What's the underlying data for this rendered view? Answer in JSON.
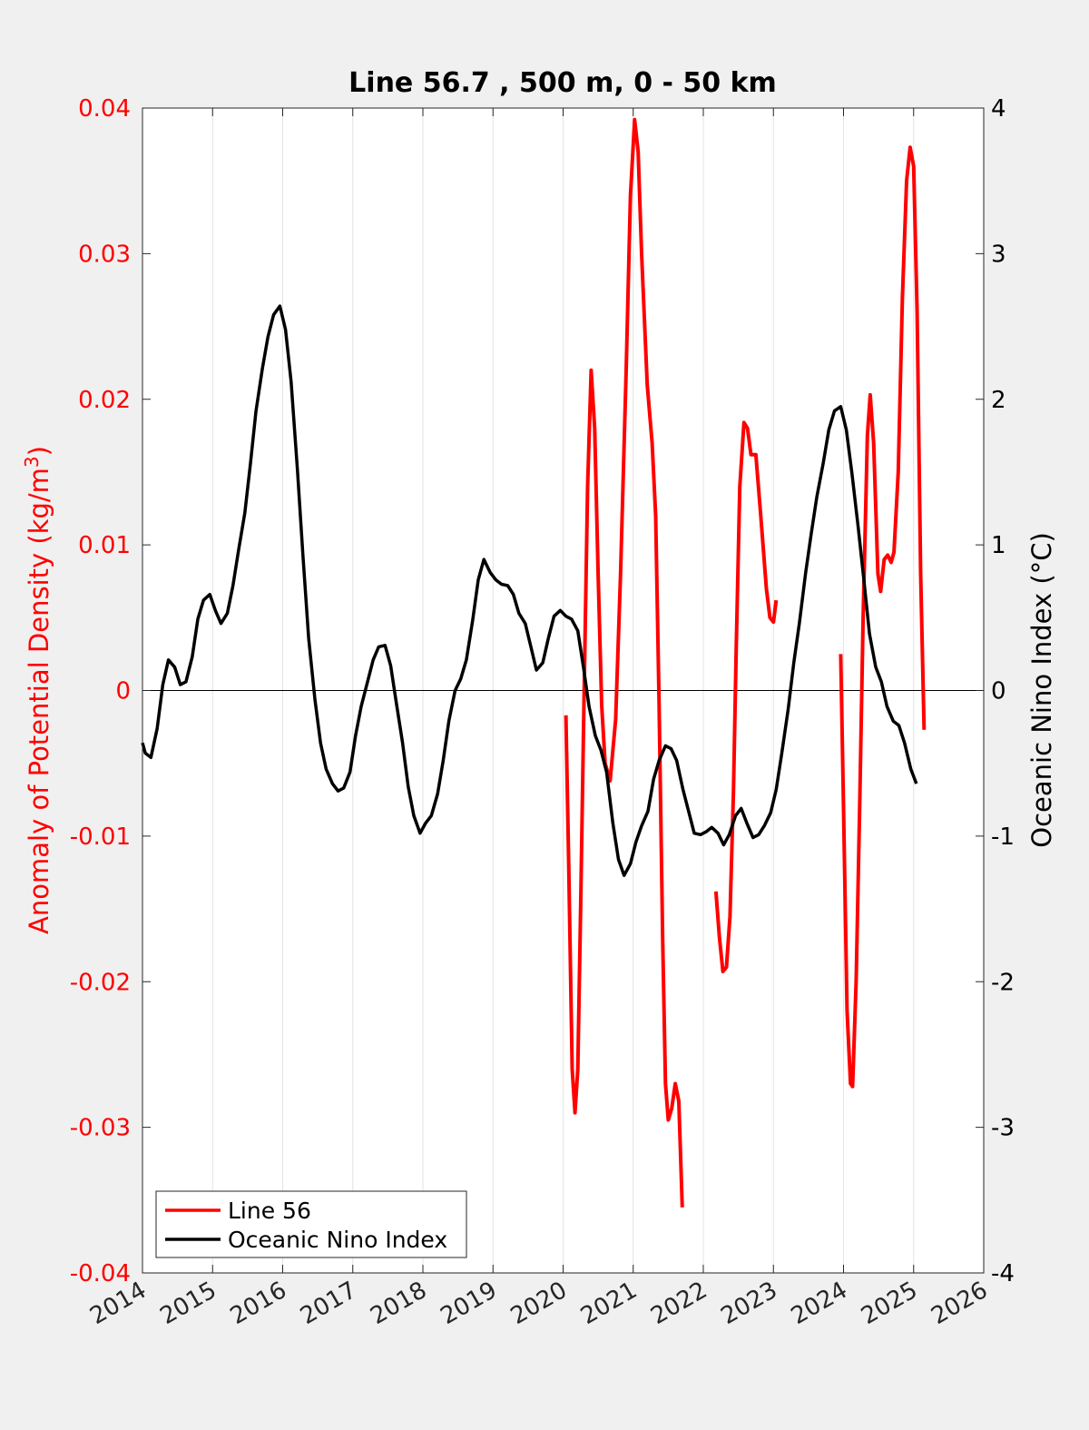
{
  "chart_data": {
    "type": "line",
    "title": "Line 56.7 , 500 m, 0 - 50 km",
    "ylabel_left": "Anomaly of Potential Density (kg/m3)",
    "ylabel_left_main": "Anomaly of Potential Density (kg/m",
    "ylabel_left_sup": "3",
    "ylabel_left_close": ")",
    "ylabel_right": "Oceanic Nino Index (°C)",
    "xlim": [
      2014,
      2026
    ],
    "ylim_left": [
      -0.04,
      0.04
    ],
    "ylim_right": [
      -4,
      4
    ],
    "x_ticks": [
      "2014",
      "2015",
      "2016",
      "2017",
      "2018",
      "2019",
      "2020",
      "2021",
      "2022",
      "2023",
      "2024",
      "2025",
      "2026"
    ],
    "y_left_ticks": [
      "0.04",
      "0.03",
      "0.02",
      "0.01",
      "0",
      "-0.01",
      "-0.02",
      "-0.03",
      "-0.04"
    ],
    "y_right_ticks": [
      "4",
      "3",
      "2",
      "1",
      "0",
      "-1",
      "-2",
      "-3",
      "-4"
    ],
    "grid": "vertical",
    "zero_line": true,
    "legend_position": "bottom-left",
    "colors": {
      "line56": "#ff0000",
      "oni": "#000000",
      "left_axis": "#ff0000",
      "right_axis": "#000000"
    },
    "series": [
      {
        "name": "Line 56",
        "axis": "left",
        "segments": [
          [
            [
              2020.04,
              -0.0017
            ],
            [
              2020.08,
              -0.012
            ],
            [
              2020.13,
              -0.026
            ],
            [
              2020.17,
              -0.029
            ],
            [
              2020.21,
              -0.026
            ],
            [
              2020.25,
              -0.015
            ],
            [
              2020.3,
              0.0
            ],
            [
              2020.35,
              0.014
            ],
            [
              2020.4,
              0.022
            ],
            [
              2020.45,
              0.018
            ],
            [
              2020.5,
              0.008
            ],
            [
              2020.55,
              -0.001
            ],
            [
              2020.6,
              -0.005
            ],
            [
              2020.67,
              -0.0062
            ],
            [
              2020.75,
              -0.002
            ],
            [
              2020.82,
              0.008
            ],
            [
              2020.9,
              0.022
            ],
            [
              2020.96,
              0.034
            ],
            [
              2021.02,
              0.0392
            ],
            [
              2021.07,
              0.037
            ],
            [
              2021.12,
              0.03
            ],
            [
              2021.2,
              0.021
            ],
            [
              2021.27,
              0.017
            ],
            [
              2021.32,
              0.012
            ],
            [
              2021.37,
              -0.001
            ],
            [
              2021.42,
              -0.017
            ],
            [
              2021.46,
              -0.027
            ],
            [
              2021.5,
              -0.0295
            ],
            [
              2021.55,
              -0.0287
            ],
            [
              2021.6,
              -0.027
            ],
            [
              2021.65,
              -0.0282
            ],
            [
              2021.7,
              -0.0355
            ]
          ],
          [
            [
              2022.18,
              -0.0138
            ],
            [
              2022.23,
              -0.017
            ],
            [
              2022.28,
              -0.0193
            ],
            [
              2022.33,
              -0.019
            ],
            [
              2022.38,
              -0.0155
            ],
            [
              2022.43,
              -0.007
            ],
            [
              2022.47,
              0.003
            ],
            [
              2022.52,
              0.014
            ],
            [
              2022.58,
              0.0184
            ],
            [
              2022.63,
              0.018
            ],
            [
              2022.68,
              0.0162
            ],
            [
              2022.75,
              0.0162
            ],
            [
              2022.82,
              0.012
            ],
            [
              2022.9,
              0.007
            ],
            [
              2022.95,
              0.005
            ],
            [
              2023.0,
              0.0047
            ],
            [
              2023.04,
              0.0062
            ]
          ],
          [
            [
              2023.96,
              0.0025
            ],
            [
              2024.0,
              -0.008
            ],
            [
              2024.05,
              -0.022
            ],
            [
              2024.1,
              -0.027
            ],
            [
              2024.13,
              -0.0272
            ],
            [
              2024.18,
              -0.02
            ],
            [
              2024.23,
              -0.008
            ],
            [
              2024.28,
              0.005
            ],
            [
              2024.34,
              0.0175
            ],
            [
              2024.38,
              0.0203
            ],
            [
              2024.43,
              0.017
            ],
            [
              2024.49,
              0.008
            ],
            [
              2024.53,
              0.0068
            ],
            [
              2024.58,
              0.009
            ],
            [
              2024.63,
              0.0093
            ],
            [
              2024.68,
              0.0088
            ],
            [
              2024.72,
              0.0095
            ],
            [
              2024.78,
              0.015
            ],
            [
              2024.84,
              0.027
            ],
            [
              2024.9,
              0.035
            ],
            [
              2024.95,
              0.0373
            ],
            [
              2025.0,
              0.036
            ],
            [
              2025.05,
              0.026
            ],
            [
              2025.1,
              0.008
            ],
            [
              2025.15,
              -0.0027
            ]
          ]
        ]
      },
      {
        "name": "Oceanic Nino Index",
        "axis": "right",
        "points": [
          [
            2014.0,
            -0.36
          ],
          [
            2014.04,
            -0.43
          ],
          [
            2014.12,
            -0.46
          ],
          [
            2014.21,
            -0.26
          ],
          [
            2014.29,
            0.04
          ],
          [
            2014.37,
            0.21
          ],
          [
            2014.46,
            0.16
          ],
          [
            2014.54,
            0.04
          ],
          [
            2014.62,
            0.06
          ],
          [
            2014.71,
            0.23
          ],
          [
            2014.79,
            0.49
          ],
          [
            2014.87,
            0.62
          ],
          [
            2014.96,
            0.66
          ],
          [
            2015.04,
            0.55
          ],
          [
            2015.12,
            0.46
          ],
          [
            2015.21,
            0.53
          ],
          [
            2015.29,
            0.72
          ],
          [
            2015.37,
            0.96
          ],
          [
            2015.46,
            1.22
          ],
          [
            2015.54,
            1.56
          ],
          [
            2015.62,
            1.92
          ],
          [
            2015.71,
            2.21
          ],
          [
            2015.79,
            2.43
          ],
          [
            2015.87,
            2.58
          ],
          [
            2015.96,
            2.64
          ],
          [
            2016.04,
            2.48
          ],
          [
            2016.12,
            2.12
          ],
          [
            2016.21,
            1.52
          ],
          [
            2016.29,
            0.92
          ],
          [
            2016.37,
            0.36
          ],
          [
            2016.46,
            -0.06
          ],
          [
            2016.54,
            -0.36
          ],
          [
            2016.62,
            -0.54
          ],
          [
            2016.71,
            -0.64
          ],
          [
            2016.79,
            -0.69
          ],
          [
            2016.87,
            -0.67
          ],
          [
            2016.96,
            -0.56
          ],
          [
            2017.04,
            -0.31
          ],
          [
            2017.12,
            -0.11
          ],
          [
            2017.21,
            0.06
          ],
          [
            2017.29,
            0.21
          ],
          [
            2017.37,
            0.3
          ],
          [
            2017.46,
            0.31
          ],
          [
            2017.54,
            0.17
          ],
          [
            2017.62,
            -0.08
          ],
          [
            2017.71,
            -0.36
          ],
          [
            2017.79,
            -0.66
          ],
          [
            2017.87,
            -0.86
          ],
          [
            2017.96,
            -0.98
          ],
          [
            2018.04,
            -0.91
          ],
          [
            2018.12,
            -0.86
          ],
          [
            2018.21,
            -0.71
          ],
          [
            2018.29,
            -0.48
          ],
          [
            2018.37,
            -0.21
          ],
          [
            2018.46,
            0.0
          ],
          [
            2018.54,
            0.08
          ],
          [
            2018.62,
            0.21
          ],
          [
            2018.71,
            0.48
          ],
          [
            2018.79,
            0.76
          ],
          [
            2018.87,
            0.9
          ],
          [
            2018.96,
            0.81
          ],
          [
            2019.04,
            0.76
          ],
          [
            2019.12,
            0.73
          ],
          [
            2019.21,
            0.72
          ],
          [
            2019.29,
            0.66
          ],
          [
            2019.37,
            0.53
          ],
          [
            2019.46,
            0.46
          ],
          [
            2019.54,
            0.3
          ],
          [
            2019.62,
            0.14
          ],
          [
            2019.71,
            0.19
          ],
          [
            2019.79,
            0.36
          ],
          [
            2019.87,
            0.51
          ],
          [
            2019.96,
            0.55
          ],
          [
            2020.04,
            0.51
          ],
          [
            2020.12,
            0.49
          ],
          [
            2020.21,
            0.41
          ],
          [
            2020.29,
            0.16
          ],
          [
            2020.37,
            -0.11
          ],
          [
            2020.46,
            -0.31
          ],
          [
            2020.54,
            -0.41
          ],
          [
            2020.62,
            -0.56
          ],
          [
            2020.71,
            -0.91
          ],
          [
            2020.79,
            -1.16
          ],
          [
            2020.87,
            -1.27
          ],
          [
            2020.96,
            -1.19
          ],
          [
            2021.04,
            -1.04
          ],
          [
            2021.12,
            -0.93
          ],
          [
            2021.21,
            -0.83
          ],
          [
            2021.29,
            -0.61
          ],
          [
            2021.37,
            -0.48
          ],
          [
            2021.46,
            -0.38
          ],
          [
            2021.54,
            -0.4
          ],
          [
            2021.62,
            -0.48
          ],
          [
            2021.71,
            -0.68
          ],
          [
            2021.79,
            -0.83
          ],
          [
            2021.87,
            -0.98
          ],
          [
            2021.96,
            -0.99
          ],
          [
            2022.04,
            -0.97
          ],
          [
            2022.12,
            -0.94
          ],
          [
            2022.21,
            -0.98
          ],
          [
            2022.29,
            -1.06
          ],
          [
            2022.37,
            -0.99
          ],
          [
            2022.46,
            -0.86
          ],
          [
            2022.54,
            -0.81
          ],
          [
            2022.62,
            -0.91
          ],
          [
            2022.71,
            -1.01
          ],
          [
            2022.79,
            -0.99
          ],
          [
            2022.87,
            -0.93
          ],
          [
            2022.96,
            -0.84
          ],
          [
            2023.04,
            -0.68
          ],
          [
            2023.12,
            -0.43
          ],
          [
            2023.21,
            -0.13
          ],
          [
            2023.29,
            0.19
          ],
          [
            2023.37,
            0.46
          ],
          [
            2023.46,
            0.81
          ],
          [
            2023.54,
            1.08
          ],
          [
            2023.62,
            1.33
          ],
          [
            2023.71,
            1.56
          ],
          [
            2023.79,
            1.79
          ],
          [
            2023.87,
            1.92
          ],
          [
            2023.96,
            1.95
          ],
          [
            2024.04,
            1.79
          ],
          [
            2024.12,
            1.49
          ],
          [
            2024.21,
            1.12
          ],
          [
            2024.29,
            0.76
          ],
          [
            2024.37,
            0.39
          ],
          [
            2024.46,
            0.16
          ],
          [
            2024.54,
            0.06
          ],
          [
            2024.62,
            -0.11
          ],
          [
            2024.71,
            -0.21
          ],
          [
            2024.79,
            -0.24
          ],
          [
            2024.87,
            -0.36
          ],
          [
            2024.96,
            -0.54
          ],
          [
            2025.04,
            -0.64
          ]
        ]
      }
    ]
  }
}
